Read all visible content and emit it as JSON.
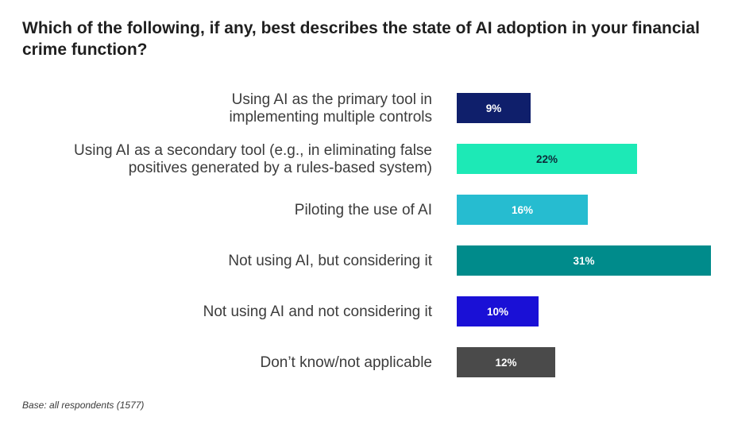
{
  "chart_data": {
    "type": "bar",
    "orientation": "horizontal",
    "title": "Which of the following, if any, best describes the state of AI adoption in your financial crime function?",
    "categories": [
      [
        "Using AI as the primary tool in",
        "implementing multiple controls"
      ],
      [
        "Using AI as a secondary tool (e.g., in eliminating false",
        "positives generated by a rules-based system)"
      ],
      [
        "Piloting the use of AI"
      ],
      [
        "Not using AI, but considering it"
      ],
      [
        "Not using AI and not considering it"
      ],
      [
        "Don’t know/not applicable"
      ]
    ],
    "values": [
      9,
      22,
      16,
      31,
      10,
      12
    ],
    "value_labels": [
      "9%",
      "22%",
      "16%",
      "31%",
      "10%",
      "12%"
    ],
    "bar_colors": [
      "#0f1f6b",
      "#1de9b6",
      "#26bcd0",
      "#008b8b",
      "#1a10d6",
      "#4a4a4a"
    ],
    "value_label_colors": [
      "#ffffff",
      "#0d2b3a",
      "#ffffff",
      "#ffffff",
      "#ffffff",
      "#ffffff"
    ],
    "unit": "%",
    "xlim": [
      0,
      31
    ],
    "grid": false,
    "legend": "none"
  },
  "footnote": "Base: all respondents (1577)"
}
